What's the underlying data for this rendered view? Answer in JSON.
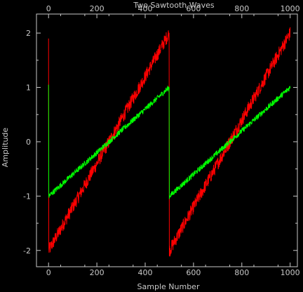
{
  "chart_data": {
    "type": "line",
    "title": "Two Sawtooth Waves",
    "xlabel": "Sample Number",
    "ylabel": "Amplitude",
    "xlim": [
      -50,
      1030
    ],
    "ylim": [
      -2.3,
      2.35
    ],
    "xticks": [
      0,
      200,
      400,
      600,
      800,
      1000
    ],
    "yticks": [
      -2,
      -1,
      0,
      1,
      2
    ],
    "grid": false,
    "background": "#000000",
    "axis_color": "#c8c8c8",
    "series": [
      {
        "color": "#ff0000",
        "x": [
          0,
          1,
          100,
          200,
          300,
          400,
          499,
          500,
          501,
          600,
          700,
          800,
          900,
          1000
        ],
        "y": [
          1.9,
          -2.0,
          -1.2,
          -0.4,
          0.4,
          1.2,
          2.0,
          -2.1,
          -2.0,
          -1.2,
          -0.4,
          0.4,
          1.2,
          2.0
        ],
        "noise": 0.12
      },
      {
        "color": "#00ff00",
        "x": [
          0,
          1,
          100,
          200,
          300,
          400,
          499,
          500,
          501,
          600,
          700,
          800,
          900,
          1000
        ],
        "y": [
          1.05,
          -1.0,
          -0.6,
          -0.2,
          0.2,
          0.6,
          1.0,
          -1.05,
          -1.0,
          -0.6,
          -0.2,
          0.2,
          0.6,
          1.0
        ],
        "noise": 0.05
      }
    ]
  }
}
